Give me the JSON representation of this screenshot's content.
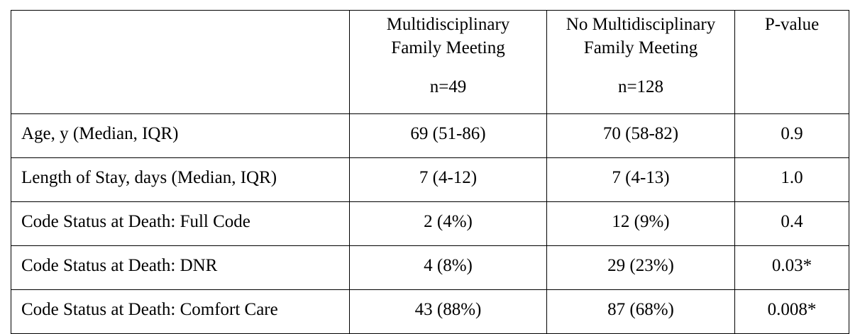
{
  "table": {
    "header": {
      "label_cell": "",
      "group1": {
        "line1": "Multidisciplinary",
        "line2": "Family Meeting",
        "n": "n=49"
      },
      "group2": {
        "line1": "No Multidisciplinary",
        "line2": "Family Meeting",
        "n": "n=128"
      },
      "pvalue": "P-value"
    },
    "rows": [
      {
        "label": "Age, y (Median, IQR)",
        "group1": "69 (51-86)",
        "group2": "70 (58-82)",
        "pvalue": "0.9"
      },
      {
        "label": "Length of Stay, days (Median, IQR)",
        "group1": "7 (4-12)",
        "group2": "7 (4-13)",
        "pvalue": "1.0"
      },
      {
        "label": "Code Status at Death: Full Code",
        "group1": "2 (4%)",
        "group2": "12 (9%)",
        "pvalue": "0.4"
      },
      {
        "label": "Code Status at Death: DNR",
        "group1": "4 (8%)",
        "group2": "29 (23%)",
        "pvalue": "0.03*"
      },
      {
        "label": "Code Status at Death: Comfort Care",
        "group1": "43 (88%)",
        "group2": "87 (68%)",
        "pvalue": "0.008*"
      }
    ]
  }
}
